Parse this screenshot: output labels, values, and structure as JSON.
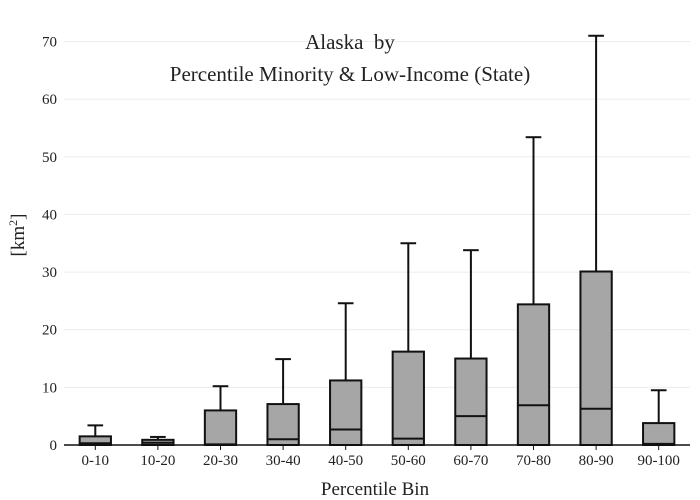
{
  "chart_data": {
    "type": "box",
    "title_lines": [
      "Alaska  by",
      "Percentile Minority & Low-Income (State)"
    ],
    "xlabel": "Percentile Bin",
    "ylabel": "[km",
    "ylabel_sup": "2",
    "ylabel_close": "]",
    "ylim": [
      0,
      72
    ],
    "yticks": [
      0,
      10,
      20,
      30,
      40,
      50,
      60,
      70
    ],
    "ytick_labels": [
      "0",
      "10",
      "20",
      "30",
      "40",
      "50",
      "60",
      "70"
    ],
    "grid": true,
    "box_color": "#a6a6a6",
    "line_color": "#111111",
    "categories": [
      "0-10",
      "10-20",
      "20-30",
      "30-40",
      "40-50",
      "50-60",
      "60-70",
      "70-80",
      "80-90",
      "90-100"
    ],
    "boxes": [
      {
        "min": 0,
        "q1": 0,
        "median": 0.3,
        "q3": 1.5,
        "max": 3.4
      },
      {
        "min": 0,
        "q1": 0,
        "median": 0.4,
        "q3": 0.9,
        "max": 1.4
      },
      {
        "min": 0,
        "q1": 0,
        "median": 0.1,
        "q3": 6.0,
        "max": 10.2
      },
      {
        "min": 0,
        "q1": 0,
        "median": 1.0,
        "q3": 7.1,
        "max": 14.9
      },
      {
        "min": 0,
        "q1": 0,
        "median": 2.7,
        "q3": 11.2,
        "max": 24.6
      },
      {
        "min": 0,
        "q1": 0,
        "median": 1.1,
        "q3": 16.2,
        "max": 35.0
      },
      {
        "min": 0,
        "q1": 0,
        "median": 5.0,
        "q3": 15.0,
        "max": 33.8
      },
      {
        "min": 0,
        "q1": 0,
        "median": 6.9,
        "q3": 24.4,
        "max": 53.4
      },
      {
        "min": 0,
        "q1": 0,
        "median": 6.3,
        "q3": 30.1,
        "max": 71.0
      },
      {
        "min": 0,
        "q1": 0,
        "median": 0.2,
        "q3": 3.8,
        "max": 9.5
      }
    ]
  }
}
